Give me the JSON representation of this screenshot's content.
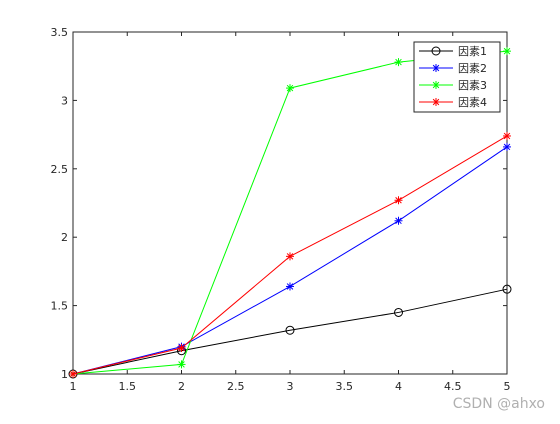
{
  "chart_data": {
    "type": "line",
    "x": [
      1,
      2,
      3,
      4,
      5
    ],
    "series": [
      {
        "name": "因素1",
        "color": "#000000",
        "marker": "o",
        "values": [
          1,
          1.17,
          1.32,
          1.45,
          1.62
        ]
      },
      {
        "name": "因素2",
        "color": "#0000ff",
        "marker": "*",
        "values": [
          1,
          1.2,
          1.64,
          2.12,
          2.66
        ]
      },
      {
        "name": "因素3",
        "color": "#00ff00",
        "marker": "*",
        "values": [
          1,
          1.07,
          3.09,
          3.28,
          3.36
        ]
      },
      {
        "name": "因素4",
        "color": "#ff0000",
        "marker": "*",
        "values": [
          1,
          1.19,
          1.86,
          2.27,
          2.74
        ]
      }
    ],
    "xlim": [
      1,
      5
    ],
    "xticks": [
      1,
      1.5,
      2,
      2.5,
      3,
      3.5,
      4,
      4.5,
      5
    ],
    "ylim": [
      1,
      3.5
    ],
    "yticks": [
      1,
      1.5,
      2,
      2.5,
      3,
      3.5
    ],
    "grid": false,
    "legend": "northeast",
    "watermark": "CSDN @ahxo"
  }
}
